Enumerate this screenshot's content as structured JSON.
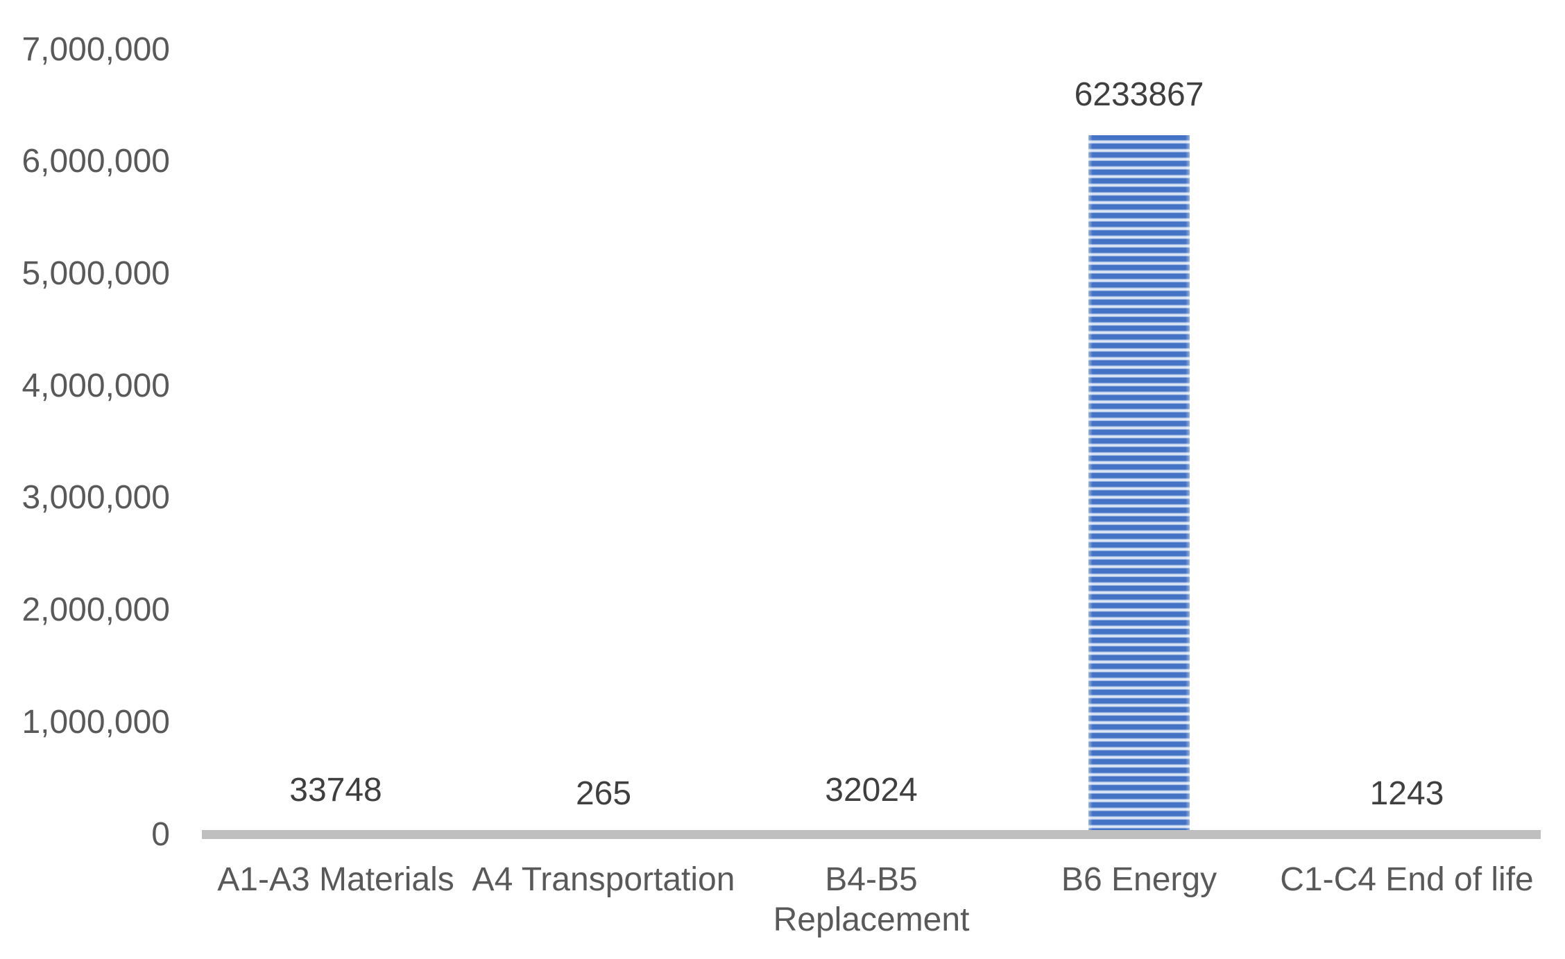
{
  "chart_data": {
    "type": "bar",
    "title": "",
    "xlabel": "",
    "ylabel": "",
    "categories": [
      "A1-A3 Materials",
      "A4 Transportation",
      "B4-B5 Replacement",
      "B6 Energy",
      "C1-C4 End of life"
    ],
    "category_lines": [
      [
        "A1-A3 Materials"
      ],
      [
        "A4 Transportation"
      ],
      [
        "B4-B5",
        "Replacement"
      ],
      [
        "B6 Energy"
      ],
      [
        "C1-C4 End of life"
      ]
    ],
    "values": [
      33748,
      265,
      32024,
      6233867,
      1243
    ],
    "data_labels": [
      "33748",
      "265",
      "32024",
      "6233867",
      "1243"
    ],
    "ylim": [
      0,
      7000000
    ],
    "ytick_step": 1000000,
    "yticks": [
      {
        "value": 0,
        "label": "0"
      },
      {
        "value": 1000000,
        "label": "1,000,000"
      },
      {
        "value": 2000000,
        "label": "2,000,000"
      },
      {
        "value": 3000000,
        "label": "3,000,000"
      },
      {
        "value": 4000000,
        "label": "4,000,000"
      },
      {
        "value": 5000000,
        "label": "5,000,000"
      },
      {
        "value": 6000000,
        "label": "6,000,000"
      },
      {
        "value": 7000000,
        "label": "7,000,000"
      }
    ],
    "grid": false,
    "legend": false,
    "bar_pattern": "horizontal-stripes",
    "colors": {
      "bar_blue": "#4472c4",
      "bar_stripe_light": "#bccfec",
      "bar_stripe_lighter": "#e8eef8",
      "axis_line": "#bfbfbf",
      "tick_label": "#595959",
      "category_label": "#595959",
      "data_label": "#3f3f3f",
      "background": "#ffffff"
    }
  }
}
